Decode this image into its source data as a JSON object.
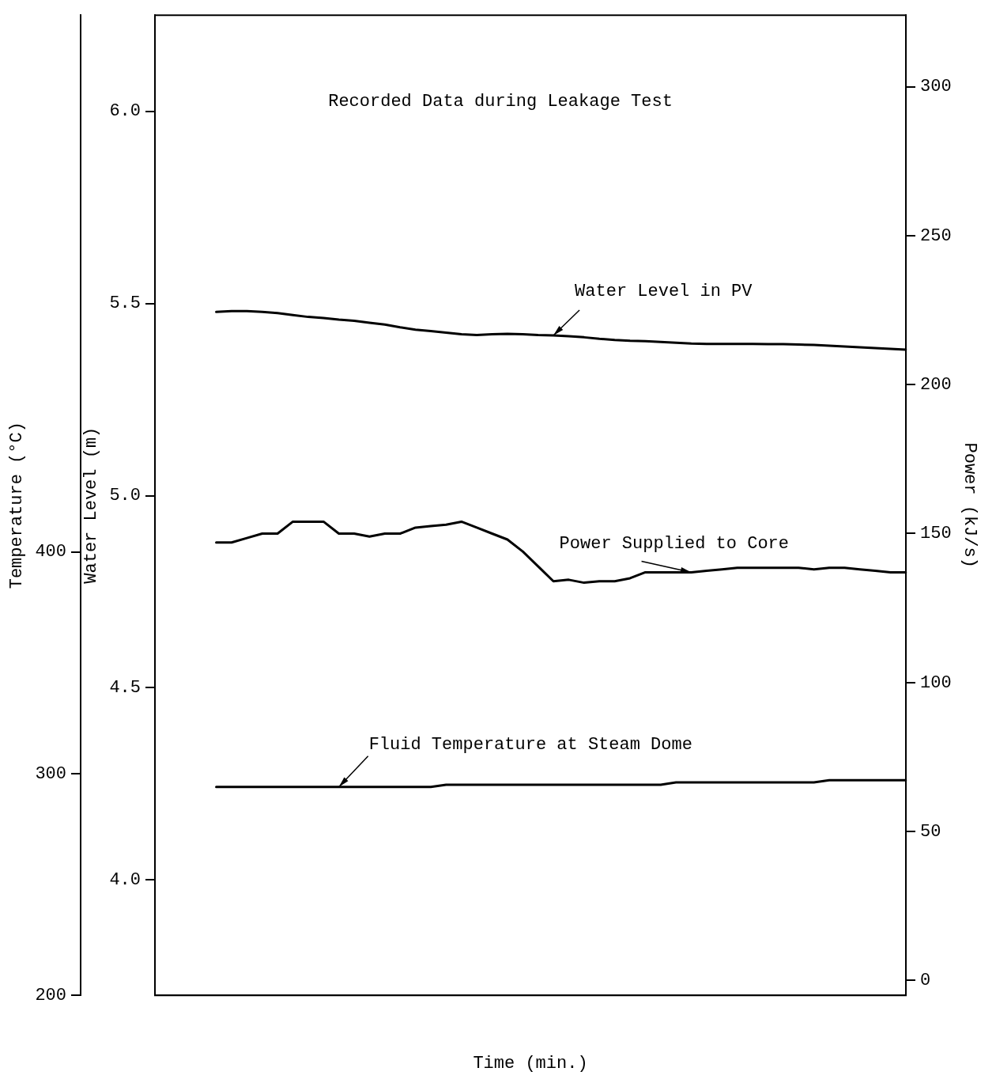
{
  "chart_data": {
    "type": "line",
    "title": "Recorded Data during Leakage Test",
    "xlabel": "Time (min.)",
    "ylabel": "Water Level (m)",
    "y2label": "Power (kJ/s)",
    "y3label": "Temperature (°C)",
    "categories": [
      null,
      null,
      null,
      null,
      null,
      null,
      null,
      null,
      null,
      null,
      null,
      null,
      null,
      null,
      null,
      null,
      null,
      null,
      null,
      null,
      null,
      null,
      null,
      null,
      null,
      null,
      null,
      null,
      null,
      null,
      null,
      null,
      null,
      null,
      null,
      null,
      null,
      null,
      null,
      null,
      null,
      null,
      null,
      null,
      null,
      null,
      null,
      null,
      null,
      null
    ],
    "ylim": [
      3.7,
      6.25
    ],
    "yticks": [
      {
        "value": 4,
        "label": "4.0"
      },
      {
        "value": 4.5,
        "label": "4.5"
      },
      {
        "value": 5,
        "label": "5.0"
      },
      {
        "value": 5.5,
        "label": "5.5"
      },
      {
        "value": 6,
        "label": "6.0"
      }
    ],
    "y2lim": [
      -5,
      324
    ],
    "y2ticks": [
      0,
      50,
      100,
      150,
      200,
      250,
      300
    ],
    "y3lim": [
      200,
      642
    ],
    "y3ticks": [
      200,
      300,
      400
    ],
    "grid": false,
    "legend": false,
    "marker": "none",
    "line_style": "solid",
    "series": [
      {
        "name": "Water Level in PV",
        "color": "#000000",
        "values": [
          null,
          null,
          null,
          null,
          5.478,
          5.48,
          5.48,
          5.478,
          5.475,
          5.47,
          5.465,
          5.462,
          5.458,
          5.455,
          5.45,
          5.445,
          5.438,
          5.432,
          5.428,
          5.424,
          5.42,
          5.418,
          5.42,
          5.421,
          5.42,
          5.418,
          5.417,
          5.415,
          5.412,
          5.408,
          5.405,
          5.403,
          5.402,
          5.4,
          5.398,
          5.396,
          5.395,
          5.395,
          5.395,
          5.395,
          5.394,
          5.394,
          5.393,
          5.392,
          5.39,
          5.388,
          5.386,
          5.384,
          5.382,
          5.38
        ]
      },
      {
        "name": "Power Supplied to Core",
        "color": "#000000",
        "axis": "y2",
        "values": [
          null,
          null,
          null,
          null,
          147,
          147,
          148.5,
          150,
          150,
          154,
          154,
          154,
          150,
          150,
          149,
          150,
          150,
          152,
          152.5,
          153,
          154,
          152,
          150,
          148,
          144,
          139,
          134,
          134.5,
          133.5,
          134,
          134,
          135,
          137,
          137,
          137,
          137,
          137.5,
          138,
          138.5,
          138.5,
          138.5,
          138.5,
          138.5,
          138,
          138.5,
          138.5,
          138,
          137.5,
          137,
          137
        ]
      },
      {
        "name": "Fluid Temperature at Steam Dome",
        "color": "#000000",
        "axis": "y3",
        "values": [
          null,
          null,
          null,
          null,
          294,
          294,
          294,
          294,
          294,
          294,
          294,
          294,
          294,
          294,
          294,
          294,
          294,
          294,
          294,
          295,
          295,
          295,
          295,
          295,
          295,
          295,
          295,
          295,
          295,
          295,
          295,
          295,
          295,
          295,
          296,
          296,
          296,
          296,
          296,
          296,
          296,
          296,
          296,
          296,
          297,
          297,
          297,
          297,
          297,
          297
        ]
      }
    ]
  }
}
